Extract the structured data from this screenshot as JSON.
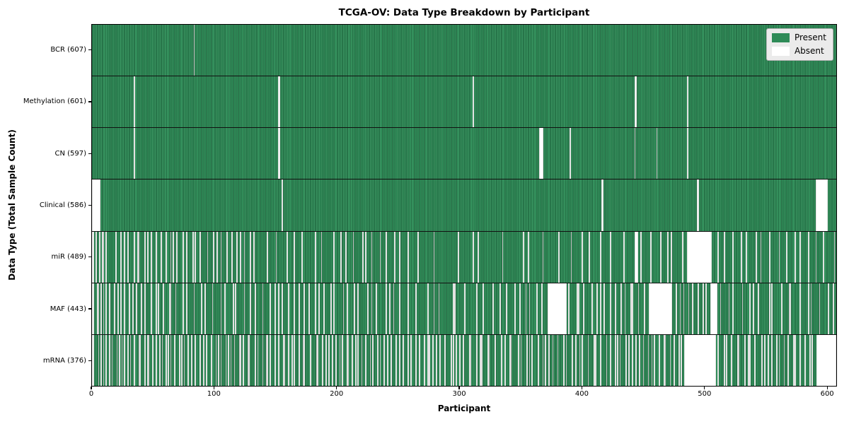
{
  "chart_data": {
    "type": "heatmap",
    "title": "TCGA-OV: Data Type Breakdown by Participant",
    "xlabel": "Participant",
    "ylabel": "Data Type (Total Sample Count)",
    "x_ticks": [
      0,
      100,
      200,
      300,
      400,
      500,
      600
    ],
    "xlim": [
      0,
      608
    ],
    "n_participants": 608,
    "grid": false,
    "legend_position": "upper right",
    "legend": [
      {
        "label": "Present",
        "color": "#2e8b57"
      },
      {
        "label": "Absent",
        "color": "#ffffff"
      }
    ],
    "colors": {
      "present": "#2e8b57",
      "present_edge": "#1d5f3c",
      "absent": "#ffffff",
      "frame": "#000000",
      "legend_bg": "#ebebeb",
      "legend_border": "#b2b2b2"
    },
    "rows": [
      {
        "name": "bcr",
        "label": "BCR (607)",
        "present_count": 607,
        "absent_count": 1,
        "absent_ranges": [
          [
            83,
            83
          ]
        ],
        "absent_scatter": []
      },
      {
        "name": "methylation",
        "label": "Methylation (601)",
        "present_count": 601,
        "absent_count": 7,
        "absent_ranges": [
          [
            34,
            34
          ],
          [
            152,
            153
          ],
          [
            311,
            311
          ],
          [
            443,
            444
          ],
          [
            486,
            486
          ]
        ],
        "absent_scatter": []
      },
      {
        "name": "cn",
        "label": "CN (597)",
        "present_count": 597,
        "absent_count": 11,
        "absent_ranges": [
          [
            34,
            34
          ],
          [
            152,
            153
          ],
          [
            365,
            368
          ],
          [
            390,
            390
          ],
          [
            443,
            443
          ],
          [
            461,
            461
          ],
          [
            486,
            486
          ]
        ],
        "absent_scatter": []
      },
      {
        "name": "clinical",
        "label": "Clinical (586)",
        "present_count": 586,
        "absent_count": 22,
        "absent_ranges": [
          [
            0,
            6
          ],
          [
            155,
            155
          ],
          [
            416,
            417
          ],
          [
            494,
            495
          ],
          [
            591,
            600
          ]
        ],
        "absent_scatter": []
      },
      {
        "name": "mir",
        "label": "miR (489)",
        "present_count": 489,
        "absent_count": 119,
        "absent_ranges": [
          [
            0,
            1
          ],
          [
            443,
            445
          ],
          [
            486,
            505
          ]
        ],
        "absent_scatter": [
          [
            3,
            12,
            5
          ],
          [
            18,
            85,
            20
          ],
          [
            88,
            135,
            12
          ],
          [
            138,
            190,
            7
          ],
          [
            195,
            260,
            12
          ],
          [
            263,
            340,
            6
          ],
          [
            345,
            440,
            10
          ],
          [
            448,
            484,
            6
          ],
          [
            508,
            607,
            16
          ]
        ]
      },
      {
        "name": "maf",
        "label": "MAF (443)",
        "present_count": 443,
        "absent_count": 165,
        "absent_ranges": [
          [
            0,
            1
          ],
          [
            372,
            387
          ],
          [
            455,
            473
          ],
          [
            505,
            510
          ]
        ],
        "absent_scatter": [
          [
            3,
            14,
            6
          ],
          [
            16,
            70,
            16
          ],
          [
            72,
            140,
            14
          ],
          [
            142,
            200,
            14
          ],
          [
            202,
            260,
            12
          ],
          [
            262,
            330,
            10
          ],
          [
            332,
            370,
            8
          ],
          [
            389,
            453,
            16
          ],
          [
            475,
            503,
            8
          ],
          [
            512,
            607,
            18
          ]
        ]
      },
      {
        "name": "mrna",
        "label": "mRNA (376)",
        "present_count": 376,
        "absent_count": 232,
        "absent_ranges": [
          [
            0,
            1
          ],
          [
            484,
            509
          ],
          [
            592,
            607
          ]
        ],
        "absent_scatter": [
          [
            3,
            130,
            50
          ],
          [
            132,
            230,
            36
          ],
          [
            232,
            330,
            32
          ],
          [
            332,
            420,
            26
          ],
          [
            422,
            482,
            20
          ],
          [
            511,
            590,
            24
          ]
        ]
      }
    ]
  }
}
